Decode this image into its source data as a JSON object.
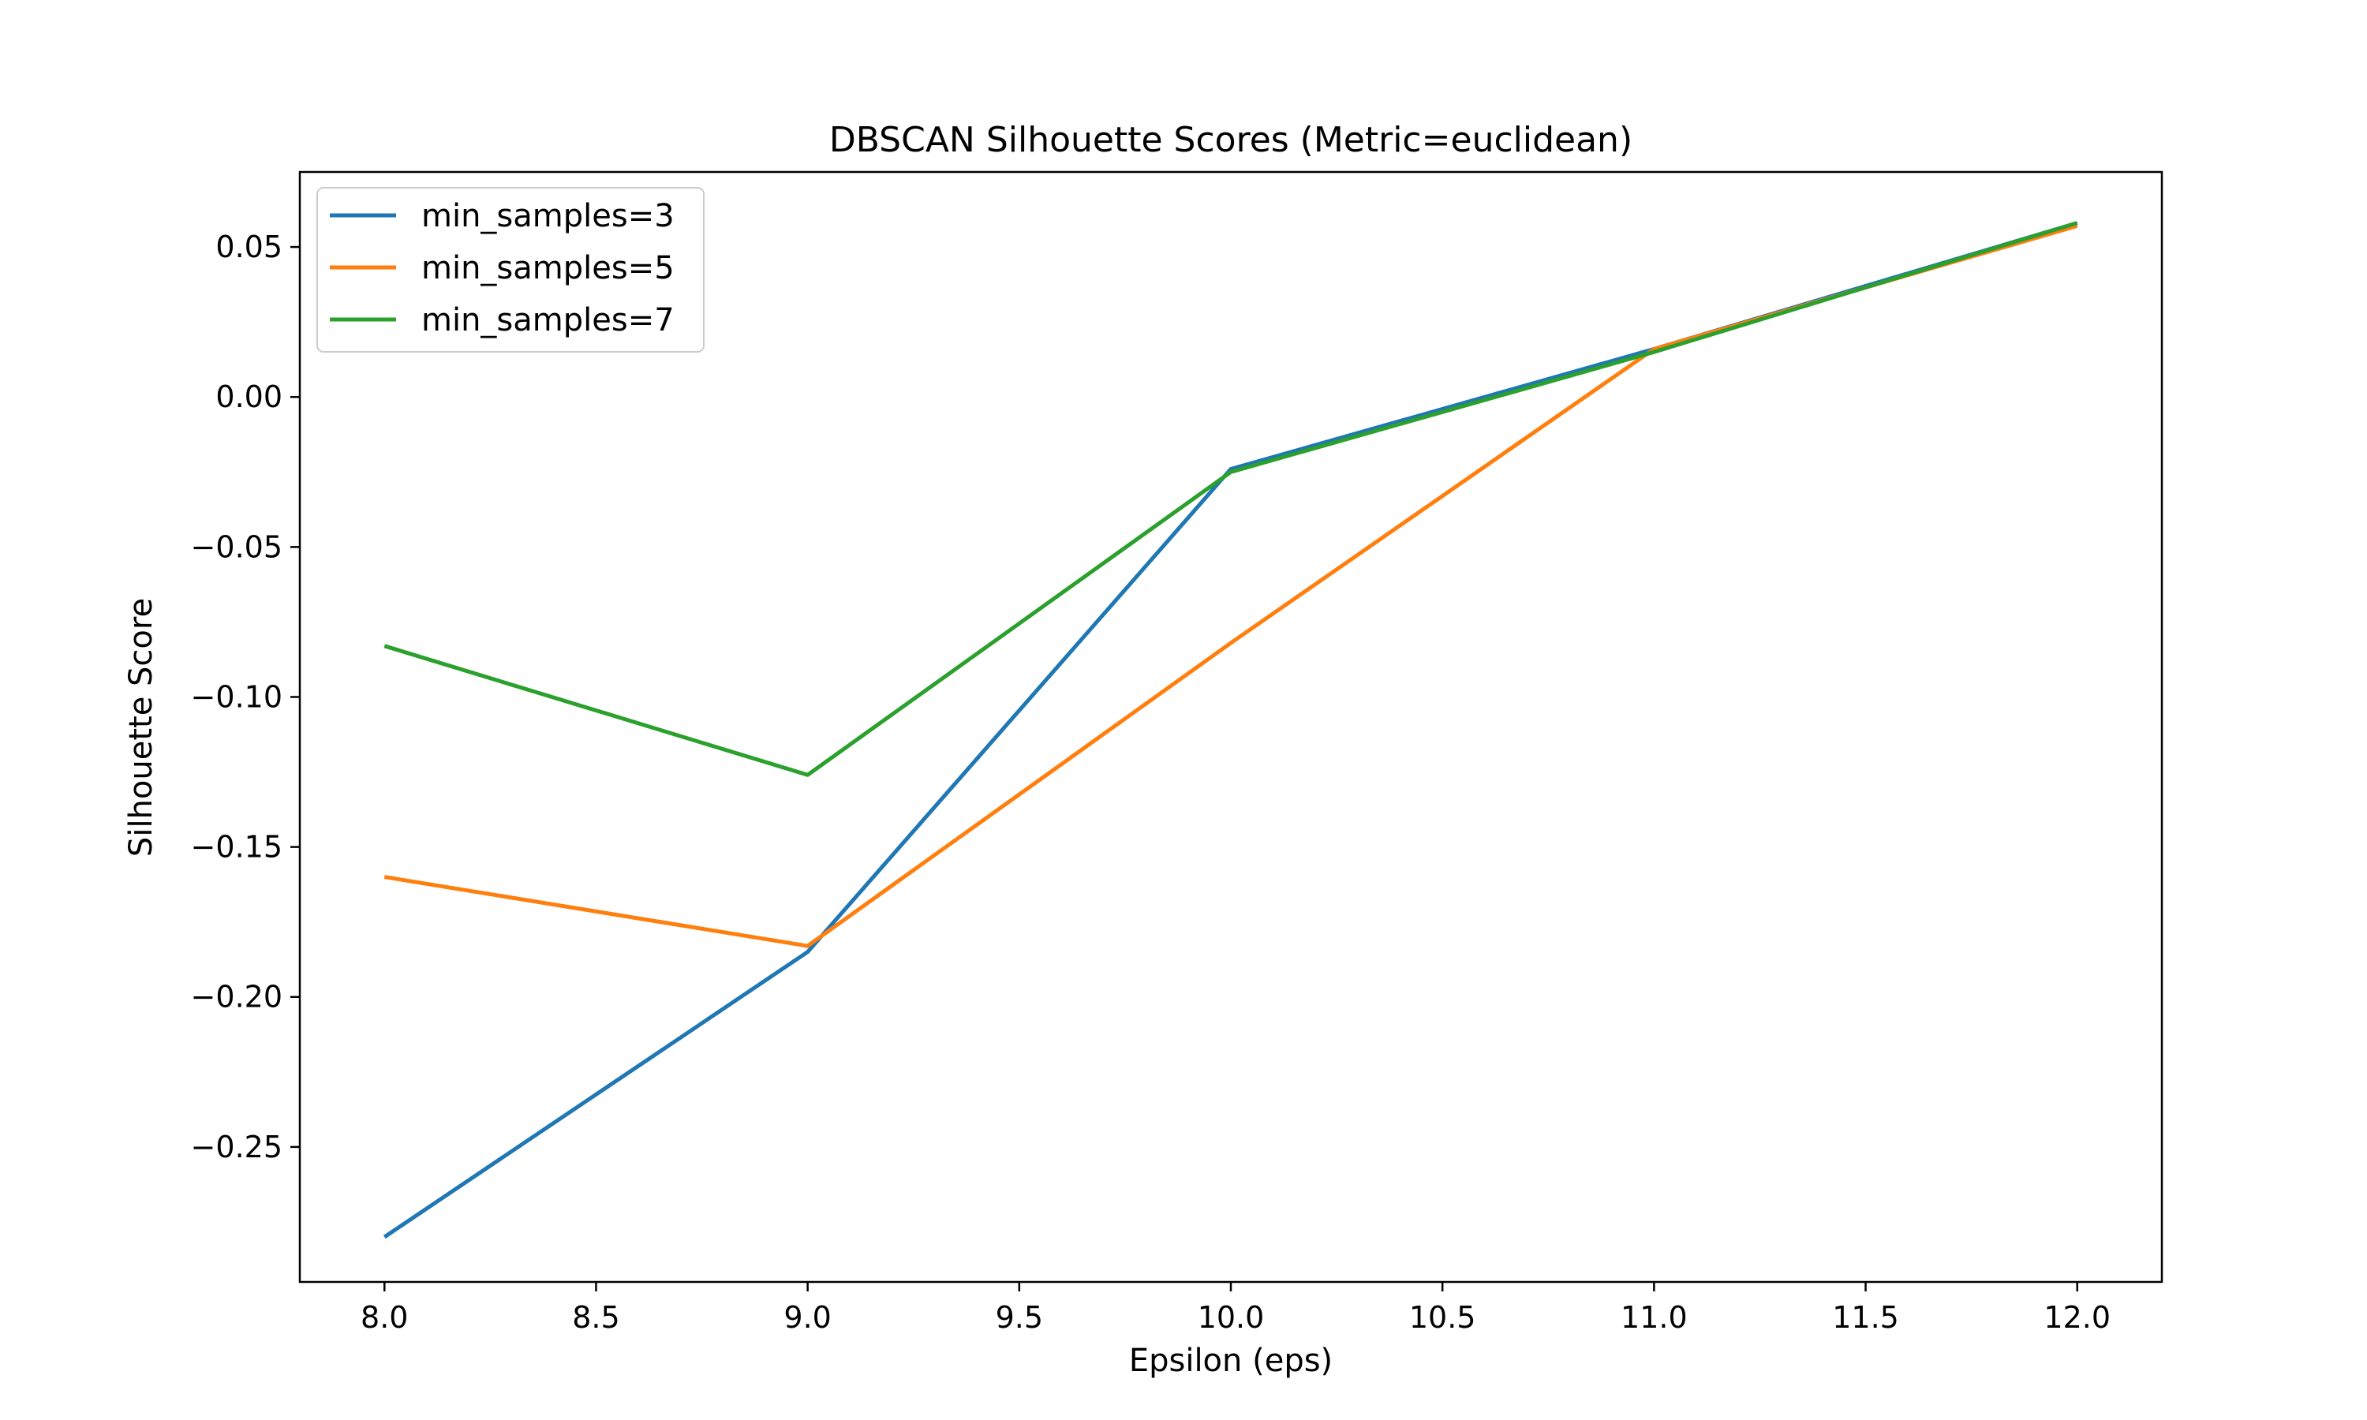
{
  "chart_data": {
    "type": "line",
    "title": "DBSCAN Silhouette Scores (Metric=euclidean)",
    "xlabel": "Epsilon (eps)",
    "ylabel": "Silhouette Score",
    "x": [
      8.0,
      9.0,
      10.0,
      11.0,
      12.0
    ],
    "xlim": [
      7.8,
      12.2
    ],
    "ylim": [
      -0.295,
      0.075
    ],
    "xticks": [
      "8.0",
      "8.5",
      "9.0",
      "9.5",
      "10.0",
      "10.5",
      "11.0",
      "11.5",
      "12.0"
    ],
    "yticks": [
      "0.05",
      "0.00",
      "−0.05",
      "−0.10",
      "−0.15",
      "−0.20",
      "−0.25"
    ],
    "grid": false,
    "legend_position": "top-left",
    "series": [
      {
        "name": "min_samples=3",
        "color": "#1f77b4",
        "values": [
          -0.28,
          -0.185,
          -0.024,
          0.016,
          0.058
        ]
      },
      {
        "name": "min_samples=5",
        "color": "#ff7f0e",
        "values": [
          -0.16,
          -0.183,
          -0.082,
          0.016,
          0.057
        ]
      },
      {
        "name": "min_samples=7",
        "color": "#2ca02c",
        "values": [
          -0.083,
          -0.126,
          -0.025,
          0.015,
          0.058
        ]
      }
    ]
  }
}
